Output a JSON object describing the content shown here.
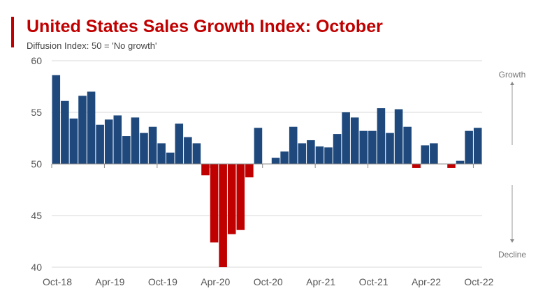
{
  "chart_data": {
    "type": "bar",
    "title": "United States Sales Growth Index: October",
    "subtitle": "Diffusion Index: 50 = 'No growth'",
    "baseline": 50,
    "ylim": [
      40,
      60
    ],
    "yticks": [
      40,
      45,
      50,
      55,
      60
    ],
    "xtick_labels": [
      "Oct-18",
      "Apr-19",
      "Oct-19",
      "Apr-20",
      "Oct-20",
      "Apr-21",
      "Oct-21",
      "Apr-22",
      "Oct-22"
    ],
    "grid": true,
    "annotations": {
      "up": "Growth",
      "down": "Decline"
    },
    "colors": {
      "above": "#1f497d",
      "below": "#c00000",
      "accent": "#c00000"
    },
    "categories": [
      "Oct-18",
      "Nov-18",
      "Dec-18",
      "Jan-19",
      "Feb-19",
      "Mar-19",
      "Apr-19",
      "May-19",
      "Jun-19",
      "Jul-19",
      "Aug-19",
      "Sep-19",
      "Oct-19",
      "Nov-19",
      "Dec-19",
      "Jan-20",
      "Feb-20",
      "Mar-20",
      "Apr-20",
      "May-20",
      "Jun-20",
      "Jul-20",
      "Aug-20",
      "Sep-20",
      "Oct-20",
      "Nov-20",
      "Dec-20",
      "Jan-21",
      "Feb-21",
      "Mar-21",
      "Apr-21",
      "May-21",
      "Jun-21",
      "Jul-21",
      "Aug-21",
      "Sep-21",
      "Oct-21",
      "Nov-21",
      "Dec-21",
      "Jan-22",
      "Feb-22",
      "Mar-22",
      "Apr-22",
      "May-22",
      "Jun-22",
      "Jul-22",
      "Aug-22",
      "Sep-22",
      "Oct-22"
    ],
    "values": [
      58.6,
      56.1,
      54.4,
      56.6,
      57.0,
      53.8,
      54.3,
      54.7,
      52.7,
      54.5,
      53.0,
      53.6,
      52.0,
      51.1,
      53.9,
      52.6,
      52.0,
      48.9,
      42.4,
      40.0,
      43.2,
      43.6,
      48.7,
      53.5,
      50.0,
      50.6,
      51.2,
      53.6,
      52.0,
      52.3,
      51.7,
      51.6,
      52.9,
      55.0,
      54.5,
      53.2,
      53.2,
      55.4,
      53.0,
      55.3,
      53.6,
      49.6,
      51.8,
      52.0,
      50.0,
      49.6,
      50.3,
      53.2,
      53.5
    ]
  }
}
